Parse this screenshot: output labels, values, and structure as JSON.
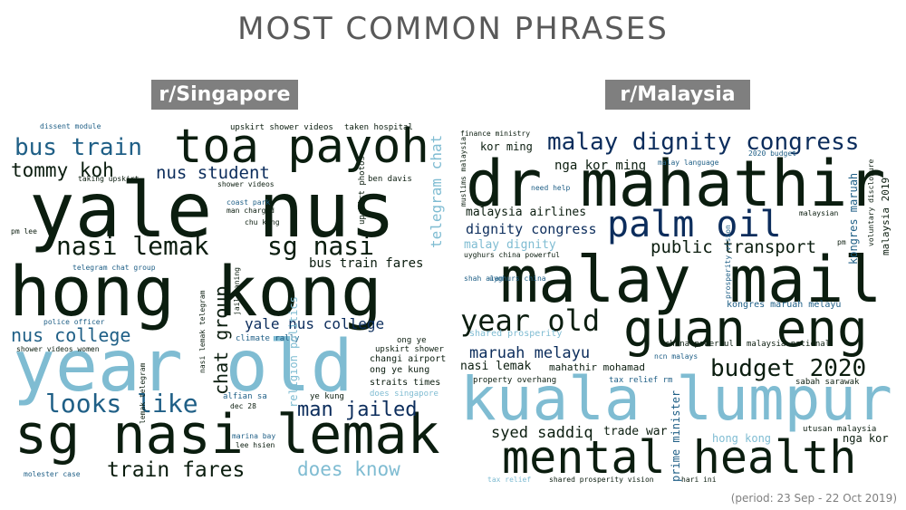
{
  "title": "MOST COMMON PHRASES",
  "period": "(period: 23 Sep - 22 Oct 2019)",
  "colors": {
    "dark": "#0b1d0f",
    "navy": "#0c2d5c",
    "mid": "#1f5f86",
    "light": "#7fbcd2",
    "title": "#595959",
    "header_bg": "#7f7f7f"
  },
  "singapore": {
    "header": "r/Singapore",
    "words": [
      {
        "text": "yale nus",
        "color": "#0b1d0f"
      },
      {
        "text": "hong kong",
        "color": "#0b1d0f"
      },
      {
        "text": "year old",
        "color": "#7fbcd2"
      },
      {
        "text": "sg nasi lemak",
        "color": "#0b1d0f"
      },
      {
        "text": "toa payoh",
        "color": "#0b1d0f"
      },
      {
        "text": "nasi lemak",
        "color": "#0b1d0f"
      },
      {
        "text": "sg nasi",
        "color": "#0b1d0f"
      },
      {
        "text": "bus train",
        "color": "#1f5f86"
      },
      {
        "text": "looks like",
        "color": "#1f5f86"
      },
      {
        "text": "tommy koh",
        "color": "#0b1d0f"
      },
      {
        "text": "nus student",
        "color": "#0c2d5c"
      },
      {
        "text": "nus college",
        "color": "#1f5f86"
      },
      {
        "text": "yale nus college",
        "color": "#0c2d5c"
      },
      {
        "text": "train fares",
        "color": "#0b1d0f"
      },
      {
        "text": "man jailed",
        "color": "#0c2d5c"
      },
      {
        "text": "does know",
        "color": "#7fbcd2"
      },
      {
        "text": "chat group",
        "color": "#0b1d0f"
      },
      {
        "text": "bus train fares",
        "color": "#0b1d0f"
      },
      {
        "text": "telegram chat",
        "color": "#7fbcd2"
      },
      {
        "text": "upskirt shower videos",
        "color": "#0b1d0f"
      },
      {
        "text": "taken hospital",
        "color": "#0b1d0f"
      },
      {
        "text": "dissent module",
        "color": "#1f5f86"
      },
      {
        "text": "taking upskirt",
        "color": "#0b1d0f"
      },
      {
        "text": "upskirt photos",
        "color": "#0b1d0f"
      },
      {
        "text": "ben davis",
        "color": "#0b1d0f"
      },
      {
        "text": "shower videos",
        "color": "#0b1d0f"
      },
      {
        "text": "coast park",
        "color": "#1f5f86"
      },
      {
        "text": "man charged",
        "color": "#0b1d0f"
      },
      {
        "text": "chu kang",
        "color": "#0b1d0f"
      },
      {
        "text": "pm lee",
        "color": "#0b1d0f"
      },
      {
        "text": "telegram chat group",
        "color": "#1f5f86"
      },
      {
        "text": "jail caning",
        "color": "#0b1d0f"
      },
      {
        "text": "police officer",
        "color": "#1f5f86"
      },
      {
        "text": "shower videos women",
        "color": "#0b1d0f"
      },
      {
        "text": "nasi lemak telegram",
        "color": "#0b1d0f"
      },
      {
        "text": "climate rally",
        "color": "#1f5f86"
      },
      {
        "text": "religion politics",
        "color": "#7fbcd2"
      },
      {
        "text": "ong ye",
        "color": "#0b1d0f"
      },
      {
        "text": "upskirt shower",
        "color": "#0b1d0f"
      },
      {
        "text": "changi airport",
        "color": "#0b1d0f"
      },
      {
        "text": "ong ye kung",
        "color": "#0b1d0f"
      },
      {
        "text": "straits times",
        "color": "#0b1d0f"
      },
      {
        "text": "does singapore",
        "color": "#7fbcd2"
      },
      {
        "text": "ye kung",
        "color": "#0b1d0f"
      },
      {
        "text": "alfian sa",
        "color": "#1f5f86"
      },
      {
        "text": "dec 28",
        "color": "#0b1d0f"
      },
      {
        "text": "lemak telegram",
        "color": "#0b1d0f"
      },
      {
        "text": "marina bay",
        "color": "#1f5f86"
      },
      {
        "text": "lee hsien",
        "color": "#0b1d0f"
      },
      {
        "text": "molester case",
        "color": "#1f5f86"
      }
    ]
  },
  "malaysia": {
    "header": "r/Malaysia",
    "words": [
      {
        "text": "dr mahathir",
        "color": "#0b1d0f"
      },
      {
        "text": "malay mail",
        "color": "#0b1d0f"
      },
      {
        "text": "kuala lumpur",
        "color": "#7fbcd2"
      },
      {
        "text": "guan eng",
        "color": "#0b1d0f"
      },
      {
        "text": "mental health",
        "color": "#0b1d0f"
      },
      {
        "text": "palm oil",
        "color": "#0c2d5c"
      },
      {
        "text": "malay dignity congress",
        "color": "#0c2d5c"
      },
      {
        "text": "year old",
        "color": "#0b1d0f"
      },
      {
        "text": "budget 2020",
        "color": "#0b1d0f"
      },
      {
        "text": "public transport",
        "color": "#0b1d0f"
      },
      {
        "text": "maruah melayu",
        "color": "#0c2d5c"
      },
      {
        "text": "nga kor ming",
        "color": "#0b1d0f"
      },
      {
        "text": "kor ming",
        "color": "#0b1d0f"
      },
      {
        "text": "dignity congress",
        "color": "#0c2d5c"
      },
      {
        "text": "malaysia airlines",
        "color": "#0b1d0f"
      },
      {
        "text": "malay dignity",
        "color": "#7fbcd2"
      },
      {
        "text": "syed saddiq",
        "color": "#0b1d0f"
      },
      {
        "text": "trade war",
        "color": "#0b1d0f"
      },
      {
        "text": "nasi lemak",
        "color": "#0b1d0f"
      },
      {
        "text": "mahathir mohamad",
        "color": "#0b1d0f"
      },
      {
        "text": "nga kor",
        "color": "#0b1d0f"
      },
      {
        "text": "kongres maruah melayu",
        "color": "#1f5f86"
      },
      {
        "text": "shared prosperity",
        "color": "#7fbcd2"
      },
      {
        "text": "china powerful",
        "color": "#0b1d0f"
      },
      {
        "text": "malaysia national",
        "color": "#0b1d0f"
      },
      {
        "text": "ncn malays",
        "color": "#1f5f86"
      },
      {
        "text": "property overhang",
        "color": "#0b1d0f"
      },
      {
        "text": "tax relief rm",
        "color": "#1f5f86"
      },
      {
        "text": "sabah sarawak",
        "color": "#0b1d0f"
      },
      {
        "text": "prime minister",
        "color": "#1f5f86"
      },
      {
        "text": "hong kong",
        "color": "#7fbcd2"
      },
      {
        "text": "utusan malaysia",
        "color": "#0b1d0f"
      },
      {
        "text": "finance ministry",
        "color": "#0b1d0f"
      },
      {
        "text": "muslims malaysia",
        "color": "#0b1d0f"
      },
      {
        "text": "need help",
        "color": "#1f5f86"
      },
      {
        "text": "malay language",
        "color": "#1f5f86"
      },
      {
        "text": "2020 budget",
        "color": "#1f5f86"
      },
      {
        "text": "kongres maruah",
        "color": "#1f5f86"
      },
      {
        "text": "voluntary disclosure",
        "color": "#0b1d0f"
      },
      {
        "text": "malaysia 2019",
        "color": "#0b1d0f"
      },
      {
        "text": "malaysian",
        "color": "#0b1d0f"
      },
      {
        "text": "pm",
        "color": "#0b1d0f"
      },
      {
        "text": "prosperity vision",
        "color": "#1f5f86"
      },
      {
        "text": "uyghurs china powerful",
        "color": "#0b1d0f"
      },
      {
        "text": "shah alam",
        "color": "#1f5f86"
      },
      {
        "text": "uyghurs china",
        "color": "#1f5f86"
      },
      {
        "text": "tax relief",
        "color": "#7fbcd2"
      },
      {
        "text": "shared prosperity vision",
        "color": "#0b1d0f"
      },
      {
        "text": "hari ini",
        "color": "#0b1d0f"
      }
    ]
  }
}
